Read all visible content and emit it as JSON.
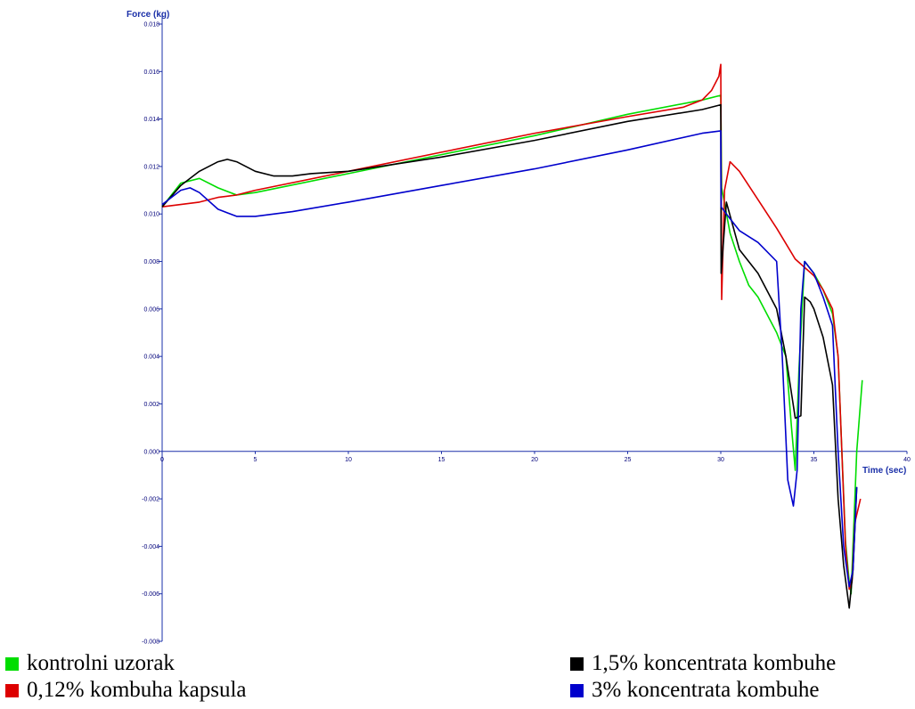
{
  "chart_data": {
    "type": "line",
    "xlabel": "Time (sec)",
    "ylabel": "Force (kg)",
    "xlim": [
      0,
      40
    ],
    "ylim": [
      -0.008,
      0.018
    ],
    "x_ticks": [
      0,
      5,
      10,
      15,
      20,
      25,
      30,
      35,
      40
    ],
    "y_ticks": [
      -0.008,
      -0.006,
      -0.004,
      -0.002,
      0.0,
      0.002,
      0.004,
      0.006,
      0.008,
      0.01,
      0.012,
      0.014,
      0.016,
      0.018
    ],
    "x_tick_labels": [
      "0",
      "5",
      "10",
      "15",
      "20",
      "25",
      "30",
      "35",
      "40"
    ],
    "y_tick_labels": [
      "-0.008",
      "-0.006",
      "-0.004",
      "-0.002",
      "0.000",
      "0.002",
      "0.004",
      "0.006",
      "0.008",
      "0.010",
      "0.012",
      "0.014",
      "0.016",
      "0.018"
    ],
    "grid": false,
    "legend_position": "bottom",
    "series": [
      {
        "name": "kontrolni uzorak",
        "color": "#00dd00",
        "x": [
          0,
          1,
          2,
          3,
          4,
          5,
          10,
          15,
          20,
          25,
          29,
          30,
          30.05,
          30.5,
          31,
          31.5,
          32,
          33,
          33.5,
          33.8,
          34,
          34.2,
          34.5,
          35,
          35.5,
          36,
          36.3,
          36.5,
          36.7,
          36.9,
          37,
          37.1,
          37.3,
          37.6
        ],
        "y": [
          0.0103,
          0.0113,
          0.0115,
          0.0111,
          0.0108,
          0.0109,
          0.0117,
          0.0125,
          0.0133,
          0.0142,
          0.0148,
          0.015,
          0.0111,
          0.0092,
          0.008,
          0.007,
          0.0065,
          0.005,
          0.004,
          0.001,
          -0.0008,
          0.0035,
          0.008,
          0.0075,
          0.0068,
          0.0058,
          0.004,
          0.0,
          -0.0038,
          -0.0055,
          -0.006,
          -0.004,
          0.0,
          0.003
        ]
      },
      {
        "name": "0,12% kombuha kapsula",
        "color": "#dd0000",
        "x": [
          0,
          1,
          2,
          3,
          4,
          5,
          10,
          15,
          20,
          25,
          28,
          29,
          29.5,
          29.9,
          30,
          30.05,
          30.2,
          30.5,
          31,
          32,
          33,
          34,
          35,
          35.5,
          36,
          36.3,
          36.5,
          36.7,
          36.9,
          37.05,
          37.2,
          37.5
        ],
        "y": [
          0.0103,
          0.0104,
          0.0105,
          0.0107,
          0.0108,
          0.011,
          0.0118,
          0.0126,
          0.0134,
          0.0141,
          0.0145,
          0.0148,
          0.0152,
          0.0158,
          0.0163,
          0.0064,
          0.011,
          0.0122,
          0.0118,
          0.0106,
          0.0094,
          0.0081,
          0.0074,
          0.0068,
          0.006,
          0.004,
          0.0,
          -0.004,
          -0.0058,
          -0.0055,
          -0.003,
          -0.002
        ]
      },
      {
        "name": "1,5% koncentrata kombuhe",
        "color": "#000000",
        "x": [
          0,
          1,
          2,
          3,
          3.5,
          4,
          5,
          6,
          7,
          8,
          10,
          15,
          20,
          25,
          29,
          30,
          30.02,
          30.3,
          31,
          32,
          33,
          33.5,
          34,
          34.3,
          34.5,
          34.8,
          35,
          35.5,
          36,
          36.3,
          36.6,
          36.9,
          37.1,
          37.3
        ],
        "y": [
          0.0103,
          0.0112,
          0.0118,
          0.0122,
          0.0123,
          0.0122,
          0.0118,
          0.0116,
          0.0116,
          0.0117,
          0.0118,
          0.0124,
          0.0131,
          0.0139,
          0.0144,
          0.0146,
          0.0075,
          0.0105,
          0.0085,
          0.0075,
          0.006,
          0.004,
          0.0014,
          0.0015,
          0.0065,
          0.0063,
          0.006,
          0.0048,
          0.0028,
          -0.002,
          -0.0048,
          -0.0066,
          -0.005,
          -0.0015
        ]
      },
      {
        "name": "3% koncentrata kombuhe",
        "color": "#0000cc",
        "x": [
          0,
          1,
          1.5,
          2,
          3,
          4,
          5,
          7,
          10,
          15,
          20,
          25,
          29,
          30,
          30.02,
          30.3,
          31,
          32,
          33,
          33.3,
          33.6,
          33.9,
          34.1,
          34.3,
          34.5,
          35,
          35.5,
          36,
          36.3,
          36.6,
          36.9,
          37.1,
          37.3
        ],
        "y": [
          0.0104,
          0.011,
          0.0111,
          0.0109,
          0.0102,
          0.0099,
          0.0099,
          0.0101,
          0.0105,
          0.0112,
          0.0119,
          0.0127,
          0.0134,
          0.0135,
          0.0103,
          0.01,
          0.0093,
          0.0088,
          0.008,
          0.004,
          -0.0012,
          -0.0023,
          -0.0008,
          0.006,
          0.008,
          0.0075,
          0.0065,
          0.0053,
          0.0,
          -0.004,
          -0.0057,
          -0.005,
          -0.0015
        ]
      }
    ]
  }
}
